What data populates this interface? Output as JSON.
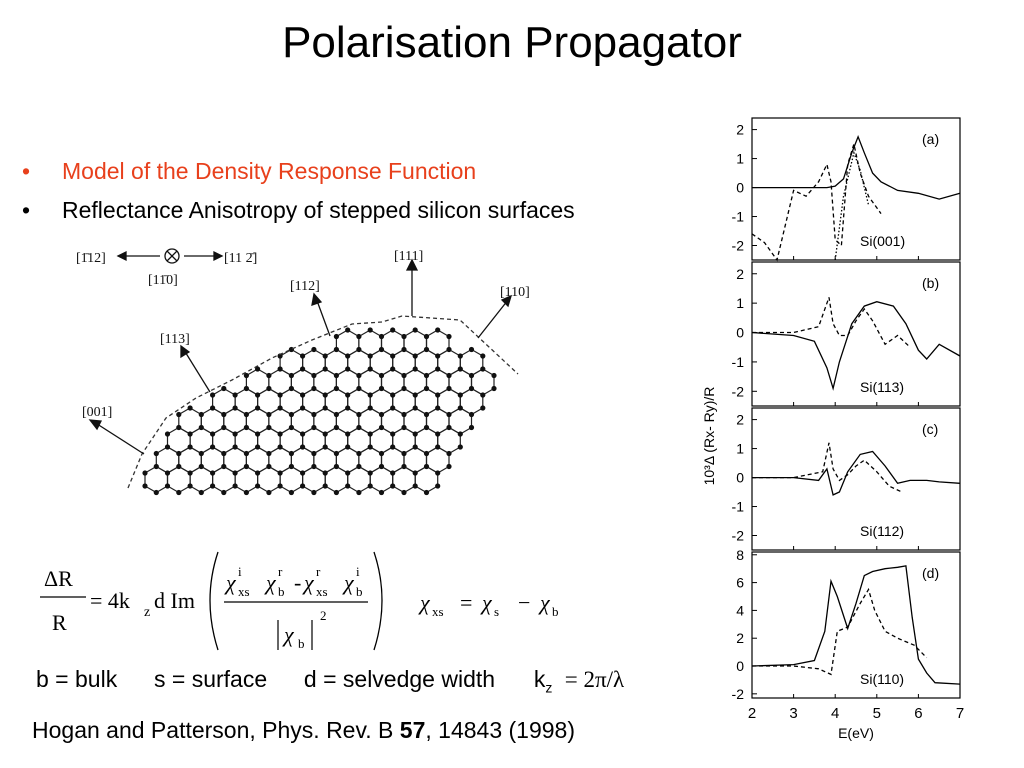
{
  "slide": {
    "title": "Polarisation Propagator",
    "bullets": [
      {
        "text": "Model of the Density Response Function",
        "color": "#e8401c"
      },
      {
        "text": "Reflectance Anisotropy of stepped silicon surfaces",
        "color": "#000000"
      }
    ],
    "definitions": {
      "b": "b = bulk",
      "s": "s = surface",
      "d": "d = selvedge  width",
      "k": "k",
      "k_sub": "z",
      "k_val": "= 2π/λ"
    },
    "citation": {
      "pre": "Hogan and Patterson, Phys. Rev. B ",
      "vol": "57",
      "post": ", 14843 (1998)"
    }
  },
  "lattice_figure": {
    "directions": [
      "[1̄12]",
      "[11 2̄]",
      "[11̄0]",
      "[111]",
      "[112]",
      "[110]",
      "[113]",
      "[001]"
    ]
  },
  "equation": {
    "lhs_num": "ΔR",
    "lhs_den": "R",
    "prefactor": "= 4k",
    "k_sub": "z",
    "d_im": "d Im",
    "chi": "χ",
    "sub_xs": "xs",
    "sub_b": "b",
    "sub_s": "s",
    "sup_i": "i",
    "sup_r": "r",
    "minus": "-",
    "sq": "2",
    "rel_eq": "=",
    "rel_minus": "−"
  },
  "chart_data": {
    "type": "line",
    "xlabel": "E(eV)",
    "ylabel": "10³Δ (Rx- Ry)/R",
    "x_ticks": [
      "2",
      "3",
      "4",
      "5",
      "6",
      "7"
    ],
    "xlim": [
      2,
      7
    ],
    "panels": [
      {
        "tag": "(a)",
        "label": "Si(001)",
        "ylim": [
          -2.5,
          2.4
        ],
        "y_ticks": [
          "2",
          "1",
          "0",
          "-1",
          "-2"
        ],
        "solid": [
          [
            2,
            0
          ],
          [
            3,
            0
          ],
          [
            3.5,
            0
          ],
          [
            3.8,
            0
          ],
          [
            4.0,
            0.05
          ],
          [
            4.2,
            0.3
          ],
          [
            4.4,
            1.2
          ],
          [
            4.55,
            1.75
          ],
          [
            4.7,
            1.2
          ],
          [
            4.9,
            0.5
          ],
          [
            5.1,
            0.2
          ],
          [
            5.5,
            -0.1
          ],
          [
            6,
            -0.2
          ],
          [
            6.5,
            -0.4
          ],
          [
            7,
            -0.2
          ]
        ],
        "dashed": [
          [
            2,
            -1.6
          ],
          [
            2.3,
            -1.9
          ],
          [
            2.6,
            -2.5
          ],
          [
            3.0,
            -0.1
          ],
          [
            3.3,
            -0.3
          ],
          [
            3.6,
            0.2
          ],
          [
            3.8,
            0.8
          ],
          [
            3.9,
            0.2
          ],
          [
            4.0,
            -1.8
          ],
          [
            4.15,
            -2.0
          ],
          [
            4.3,
            0.8
          ],
          [
            4.45,
            1.5
          ],
          [
            4.6,
            0.5
          ],
          [
            4.8,
            -0.3
          ],
          [
            5.1,
            -0.9
          ]
        ],
        "dotted": [
          [
            4.0,
            -2.5
          ],
          [
            4.2,
            -0.3
          ],
          [
            4.45,
            1.2
          ],
          [
            4.6,
            0.6
          ],
          [
            4.8,
            -0.6
          ]
        ]
      },
      {
        "tag": "(b)",
        "label": "Si(113)",
        "ylim": [
          -2.5,
          2.4
        ],
        "y_ticks": [
          "2",
          "1",
          "0",
          "-1",
          "-2"
        ],
        "solid": [
          [
            2,
            0
          ],
          [
            3,
            -0.1
          ],
          [
            3.5,
            -0.3
          ],
          [
            3.8,
            -1.2
          ],
          [
            3.95,
            -1.9
          ],
          [
            4.1,
            -1.0
          ],
          [
            4.4,
            0.3
          ],
          [
            4.7,
            0.9
          ],
          [
            5.0,
            1.05
          ],
          [
            5.4,
            0.9
          ],
          [
            5.7,
            0.3
          ],
          [
            6.0,
            -0.6
          ],
          [
            6.2,
            -0.9
          ],
          [
            6.5,
            -0.4
          ],
          [
            7,
            -0.8
          ]
        ],
        "dashed": [
          [
            2,
            0
          ],
          [
            3,
            0
          ],
          [
            3.6,
            0.2
          ],
          [
            3.85,
            1.2
          ],
          [
            3.95,
            0.3
          ],
          [
            4.1,
            -0.1
          ],
          [
            4.3,
            -0.1
          ],
          [
            4.5,
            0.4
          ],
          [
            4.7,
            0.8
          ],
          [
            4.9,
            0.4
          ],
          [
            5.2,
            -0.4
          ],
          [
            5.5,
            -0.1
          ],
          [
            5.8,
            -0.5
          ]
        ]
      },
      {
        "tag": "(c)",
        "label": "Si(112)",
        "ylim": [
          -2.5,
          2.4
        ],
        "y_ticks": [
          "2",
          "1",
          "0",
          "-1",
          "-2"
        ],
        "solid": [
          [
            2,
            0
          ],
          [
            3,
            0
          ],
          [
            3.6,
            -0.1
          ],
          [
            3.8,
            0.3
          ],
          [
            3.95,
            -0.6
          ],
          [
            4.1,
            -0.5
          ],
          [
            4.3,
            0.2
          ],
          [
            4.6,
            0.8
          ],
          [
            4.9,
            0.9
          ],
          [
            5.2,
            0.4
          ],
          [
            5.5,
            -0.2
          ],
          [
            5.8,
            -0.1
          ],
          [
            6.2,
            -0.1
          ],
          [
            6.5,
            -0.15
          ],
          [
            7,
            -0.2
          ]
        ],
        "dashed": [
          [
            2,
            0
          ],
          [
            3,
            0
          ],
          [
            3.7,
            0.2
          ],
          [
            3.85,
            1.2
          ],
          [
            3.95,
            0.3
          ],
          [
            4.1,
            -0.1
          ],
          [
            4.3,
            0.1
          ],
          [
            4.5,
            0.4
          ],
          [
            4.7,
            0.6
          ],
          [
            5.0,
            0.2
          ],
          [
            5.3,
            -0.3
          ],
          [
            5.6,
            -0.5
          ]
        ]
      },
      {
        "tag": "(d)",
        "label": "Si(110)",
        "ylim": [
          -2.3,
          8.2
        ],
        "y_ticks": [
          "8",
          "6",
          "4",
          "2",
          "0",
          "-2"
        ],
        "solid": [
          [
            2,
            0
          ],
          [
            3,
            0.1
          ],
          [
            3.5,
            0.4
          ],
          [
            3.75,
            2.5
          ],
          [
            3.9,
            6.1
          ],
          [
            4.05,
            5
          ],
          [
            4.3,
            2.7
          ],
          [
            4.5,
            4.5
          ],
          [
            4.7,
            6.5
          ],
          [
            4.9,
            6.8
          ],
          [
            5.2,
            7.0
          ],
          [
            5.5,
            7.1
          ],
          [
            5.7,
            7.2
          ],
          [
            5.85,
            3.5
          ],
          [
            6.0,
            0.5
          ],
          [
            6.2,
            -0.5
          ],
          [
            6.4,
            -1.2
          ],
          [
            7,
            -1.3
          ]
        ],
        "dashed": [
          [
            2,
            0
          ],
          [
            3,
            0
          ],
          [
            3.6,
            -0.2
          ],
          [
            3.9,
            -0.6
          ],
          [
            4.05,
            2.5
          ],
          [
            4.3,
            2.8
          ],
          [
            4.6,
            4.5
          ],
          [
            4.8,
            5.5
          ],
          [
            4.95,
            4.0
          ],
          [
            5.2,
            2.5
          ],
          [
            5.5,
            2.0
          ],
          [
            5.9,
            1.5
          ],
          [
            6.2,
            0.6
          ]
        ]
      }
    ]
  }
}
